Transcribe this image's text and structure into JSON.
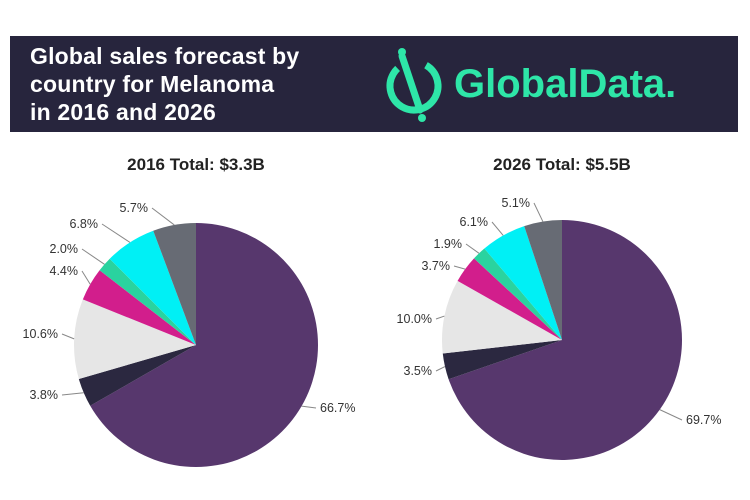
{
  "banner": {
    "title_lines": [
      "Global sales forecast by",
      "country for Melanoma",
      "in 2016 and 2026"
    ],
    "logo_text": "GlobalData."
  },
  "colors": {
    "banner_bg": "#27253d",
    "logo_green": "#2ee6a8"
  },
  "chart_data": [
    {
      "type": "pie",
      "title": "2016 Total: $3.3B",
      "slices": [
        {
          "value": 66.7,
          "label": "66.7%",
          "color": "#57376d"
        },
        {
          "value": 3.8,
          "label": "3.8%",
          "color": "#2b2840"
        },
        {
          "value": 10.6,
          "label": "10.6%",
          "color": "#e6e6e6"
        },
        {
          "value": 4.4,
          "label": "4.4%",
          "color": "#d21e8c"
        },
        {
          "value": 2.0,
          "label": "2.0%",
          "color": "#2ad39f"
        },
        {
          "value": 6.8,
          "label": "6.8%",
          "color": "#00f0f5"
        },
        {
          "value": 5.7,
          "label": "5.7%",
          "color": "#676b74"
        }
      ]
    },
    {
      "type": "pie",
      "title": "2026 Total: $5.5B",
      "slices": [
        {
          "value": 69.7,
          "label": "69.7%",
          "color": "#57376d"
        },
        {
          "value": 3.5,
          "label": "3.5%",
          "color": "#2b2840"
        },
        {
          "value": 10.0,
          "label": "10.0%",
          "color": "#e6e6e6"
        },
        {
          "value": 3.7,
          "label": "3.7%",
          "color": "#d21e8c"
        },
        {
          "value": 1.9,
          "label": "1.9%",
          "color": "#2ad39f"
        },
        {
          "value": 6.1,
          "label": "6.1%",
          "color": "#00f0f5"
        },
        {
          "value": 5.1,
          "label": "5.1%",
          "color": "#676b74"
        }
      ]
    }
  ]
}
